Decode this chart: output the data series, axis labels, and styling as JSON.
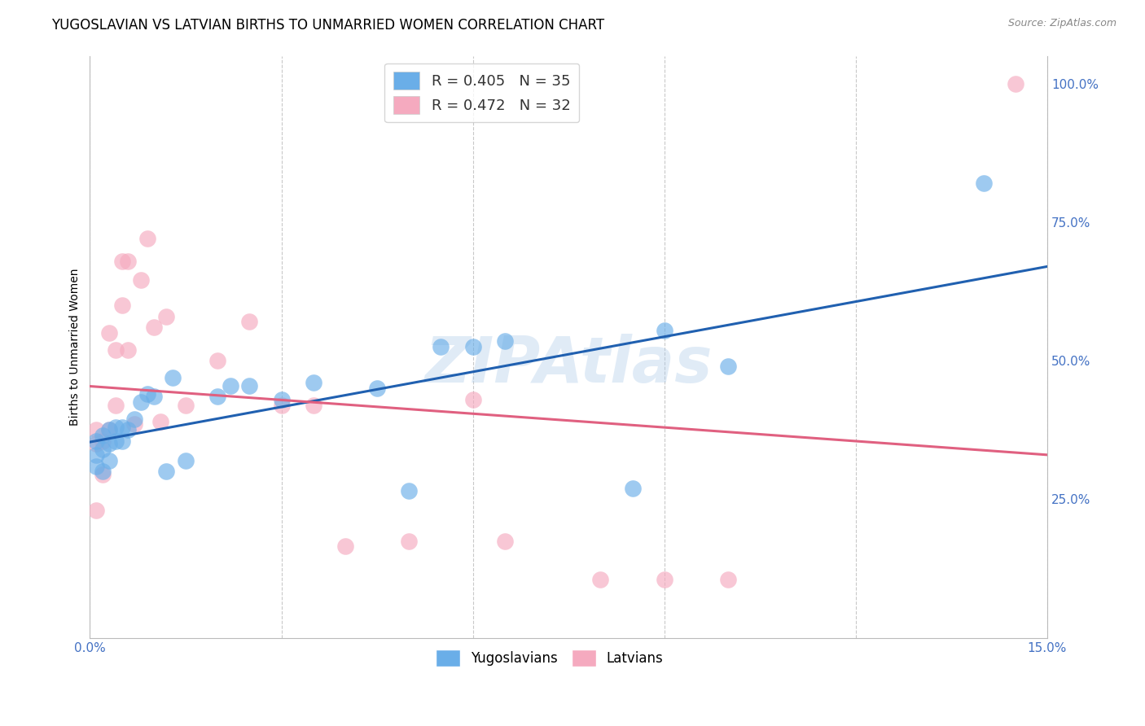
{
  "title": "YUGOSLAVIAN VS LATVIAN BIRTHS TO UNMARRIED WOMEN CORRELATION CHART",
  "source": "Source: ZipAtlas.com",
  "ylabel": "Births to Unmarried Women",
  "xmin": 0.0,
  "xmax": 0.15,
  "ymin": 0.0,
  "ymax": 1.05,
  "xticks": [
    0.0,
    0.03,
    0.06,
    0.09,
    0.12,
    0.15
  ],
  "xtick_labels": [
    "0.0%",
    "",
    "",
    "",
    "",
    "15.0%"
  ],
  "ytick_labels": [
    "25.0%",
    "50.0%",
    "75.0%",
    "100.0%"
  ],
  "yticks": [
    0.25,
    0.5,
    0.75,
    1.0
  ],
  "blue_color": "#6AAEE8",
  "pink_color": "#F5AABF",
  "blue_line_color": "#2060B0",
  "pink_line_color": "#E06080",
  "legend_label1": "Yugoslavians",
  "legend_label2": "Latvians",
  "watermark": "ZIPAtlas",
  "background_color": "#FFFFFF",
  "grid_color": "#BBBBBB",
  "title_fontsize": 12,
  "axis_label_fontsize": 10,
  "tick_fontsize": 11,
  "blue_R": 0.405,
  "blue_N": 35,
  "pink_R": 0.472,
  "pink_N": 32,
  "yug_x": [
    0.001,
    0.001,
    0.001,
    0.002,
    0.002,
    0.002,
    0.003,
    0.003,
    0.003,
    0.004,
    0.004,
    0.005,
    0.005,
    0.006,
    0.007,
    0.008,
    0.009,
    0.01,
    0.012,
    0.013,
    0.015,
    0.02,
    0.022,
    0.025,
    0.03,
    0.035,
    0.045,
    0.05,
    0.055,
    0.06,
    0.065,
    0.085,
    0.09,
    0.1,
    0.14
  ],
  "yug_y": [
    0.355,
    0.33,
    0.31,
    0.365,
    0.34,
    0.3,
    0.375,
    0.35,
    0.32,
    0.38,
    0.355,
    0.38,
    0.355,
    0.375,
    0.395,
    0.425,
    0.44,
    0.435,
    0.3,
    0.47,
    0.32,
    0.435,
    0.455,
    0.455,
    0.43,
    0.46,
    0.45,
    0.265,
    0.525,
    0.525,
    0.535,
    0.27,
    0.555,
    0.49,
    0.82
  ],
  "lat_x": [
    0.001,
    0.001,
    0.001,
    0.002,
    0.002,
    0.003,
    0.003,
    0.004,
    0.004,
    0.005,
    0.005,
    0.006,
    0.006,
    0.007,
    0.008,
    0.009,
    0.01,
    0.011,
    0.012,
    0.015,
    0.02,
    0.025,
    0.03,
    0.035,
    0.04,
    0.05,
    0.06,
    0.065,
    0.08,
    0.09,
    0.1,
    0.145
  ],
  "lat_y": [
    0.375,
    0.35,
    0.23,
    0.355,
    0.295,
    0.375,
    0.55,
    0.42,
    0.52,
    0.6,
    0.68,
    0.52,
    0.68,
    0.385,
    0.645,
    0.72,
    0.56,
    0.39,
    0.58,
    0.42,
    0.5,
    0.57,
    0.42,
    0.42,
    0.165,
    0.175,
    0.43,
    0.175,
    0.105,
    0.105,
    0.105,
    1.0
  ]
}
